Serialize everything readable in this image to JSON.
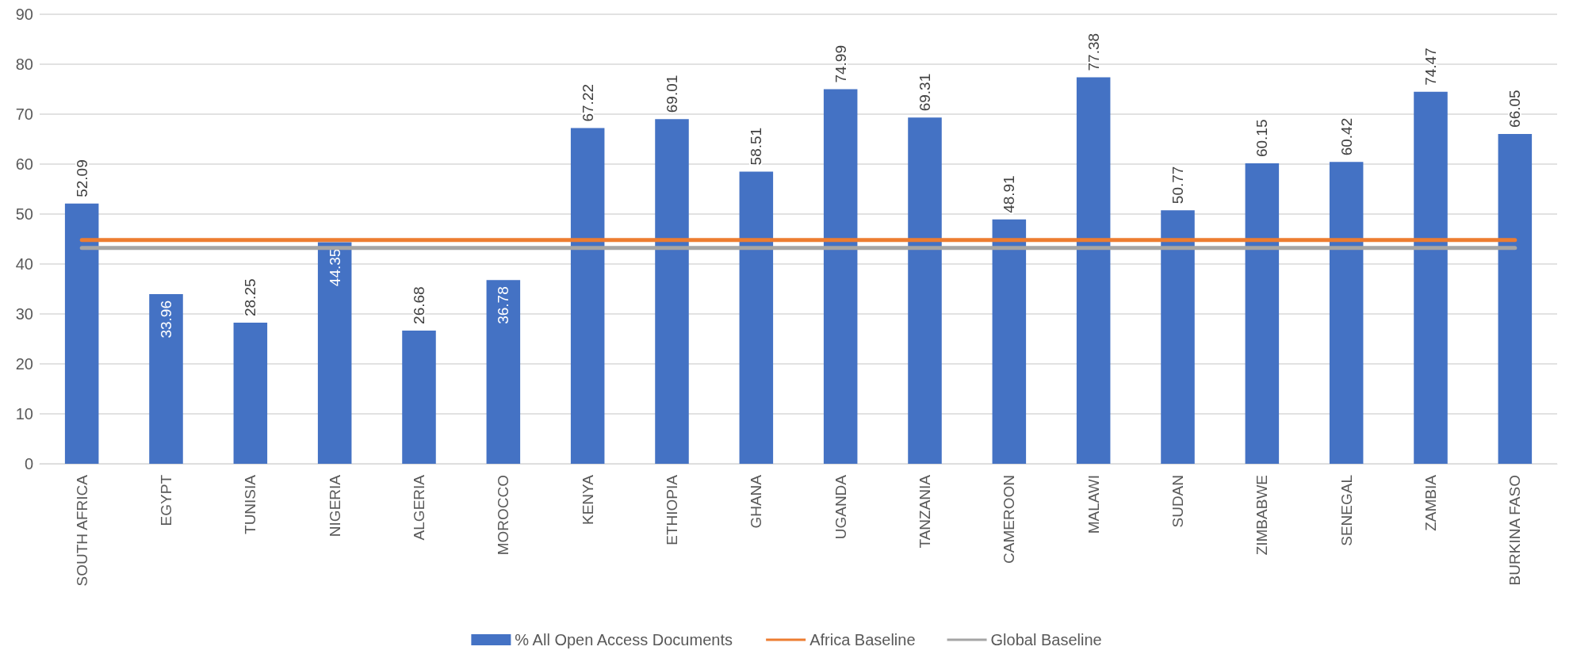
{
  "chart_data": {
    "type": "bar",
    "categories": [
      "SOUTH AFRICA",
      "EGYPT",
      "TUNISIA",
      "NIGERIA",
      "ALGERIA",
      "MOROCCO",
      "KENYA",
      "ETHIOPIA",
      "GHANA",
      "UGANDA",
      "TANZANIA",
      "CAMEROON",
      "MALAWI",
      "SUDAN",
      "ZIMBABWE",
      "SENEGAL",
      "ZAMBIA",
      "BURKINA FASO"
    ],
    "series": [
      {
        "name": "% All Open Access Documents",
        "color": "#4472c4",
        "values": [
          52.09,
          33.96,
          28.25,
          44.35,
          26.68,
          36.78,
          67.22,
          69.01,
          58.51,
          74.99,
          69.31,
          48.91,
          77.38,
          50.77,
          60.15,
          60.42,
          74.47,
          66.05
        ],
        "data_labels": true
      },
      {
        "name": "Africa Baseline",
        "type": "line",
        "color": "#ed7d31",
        "values": [
          44.8,
          44.8,
          44.8,
          44.8,
          44.8,
          44.8,
          44.8,
          44.8,
          44.8,
          44.8,
          44.8,
          44.8,
          44.8,
          44.8,
          44.8,
          44.8,
          44.8,
          44.8
        ]
      },
      {
        "name": "Global Baseline",
        "type": "line",
        "color": "#a5a5a5",
        "values": [
          43.2,
          43.2,
          43.2,
          43.2,
          43.2,
          43.2,
          43.2,
          43.2,
          43.2,
          43.2,
          43.2,
          43.2,
          43.2,
          43.2,
          43.2,
          43.2,
          43.2,
          43.2
        ]
      }
    ],
    "ylim": [
      0,
      90
    ],
    "yticks": [
      0,
      10,
      20,
      30,
      40,
      50,
      60,
      70,
      80,
      90
    ],
    "grid": "y",
    "legend": "bottom",
    "marker": "none",
    "line_style": "solid"
  }
}
